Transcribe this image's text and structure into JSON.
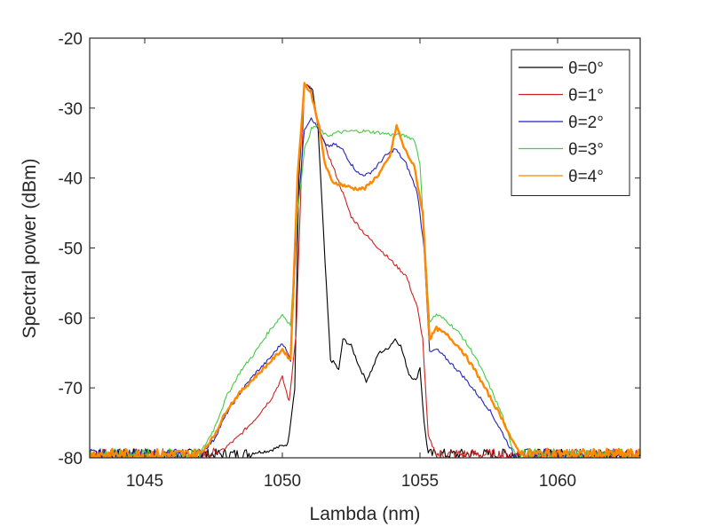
{
  "chart_data": {
    "type": "line",
    "title": "",
    "xlabel": "Lambda (nm)",
    "ylabel": "Spectral power (dBm)",
    "xlim": [
      1043,
      1063
    ],
    "ylim": [
      -80,
      -20
    ],
    "xticks": [
      1045,
      1050,
      1055,
      1060
    ],
    "yticks": [
      -80,
      -70,
      -60,
      -50,
      -40,
      -30,
      -20
    ],
    "grid": false,
    "legend_position": "top-right",
    "noise_floor": -79.5,
    "series": [
      {
        "name": "θ=0°",
        "color": "#000000",
        "points": [
          [
            1043,
            -79.5
          ],
          [
            1048.5,
            -79.5
          ],
          [
            1049.5,
            -79
          ],
          [
            1050.2,
            -78
          ],
          [
            1050.45,
            -70
          ],
          [
            1050.6,
            -40
          ],
          [
            1050.8,
            -26.5
          ],
          [
            1051.1,
            -27.5
          ],
          [
            1051.3,
            -33
          ],
          [
            1051.55,
            -52
          ],
          [
            1051.75,
            -66
          ],
          [
            1051.9,
            -66.5
          ],
          [
            1052.05,
            -67.5
          ],
          [
            1052.2,
            -63
          ],
          [
            1052.5,
            -64
          ],
          [
            1052.8,
            -67
          ],
          [
            1053.05,
            -69
          ],
          [
            1053.3,
            -67
          ],
          [
            1053.5,
            -65
          ],
          [
            1053.8,
            -64.5
          ],
          [
            1054.1,
            -63
          ],
          [
            1054.3,
            -64
          ],
          [
            1054.6,
            -68
          ],
          [
            1054.85,
            -69
          ],
          [
            1055.0,
            -67
          ],
          [
            1055.15,
            -75
          ],
          [
            1055.3,
            -79.5
          ],
          [
            1063,
            -79.5
          ]
        ]
      },
      {
        "name": "θ=1°",
        "color": "#cc2222",
        "points": [
          [
            1043,
            -79.5
          ],
          [
            1047.3,
            -79.5
          ],
          [
            1047.8,
            -79
          ],
          [
            1048.4,
            -77
          ],
          [
            1049.0,
            -74.5
          ],
          [
            1049.6,
            -71.5
          ],
          [
            1050.0,
            -68.5
          ],
          [
            1050.25,
            -72
          ],
          [
            1050.5,
            -62
          ],
          [
            1050.8,
            -26.5
          ],
          [
            1051.0,
            -27
          ],
          [
            1051.3,
            -32
          ],
          [
            1051.6,
            -36
          ],
          [
            1052.0,
            -40
          ],
          [
            1052.5,
            -45.5
          ],
          [
            1053.0,
            -48
          ],
          [
            1053.5,
            -50
          ],
          [
            1054.0,
            -52
          ],
          [
            1054.5,
            -54
          ],
          [
            1054.9,
            -58.5
          ],
          [
            1055.1,
            -63
          ],
          [
            1055.3,
            -77
          ],
          [
            1055.6,
            -79.5
          ],
          [
            1063,
            -79.5
          ]
        ]
      },
      {
        "name": "θ=2°",
        "color": "#2222bb",
        "points": [
          [
            1043,
            -79.5
          ],
          [
            1047.0,
            -79.5
          ],
          [
            1047.5,
            -77.5
          ],
          [
            1048.0,
            -73.5
          ],
          [
            1048.5,
            -70.5
          ],
          [
            1049.0,
            -68
          ],
          [
            1049.5,
            -66
          ],
          [
            1050.0,
            -63.5
          ],
          [
            1050.3,
            -66
          ],
          [
            1050.55,
            -45
          ],
          [
            1050.8,
            -33
          ],
          [
            1051.05,
            -31.3
          ],
          [
            1051.3,
            -33
          ],
          [
            1051.6,
            -35.5
          ],
          [
            1051.9,
            -35.2
          ],
          [
            1052.2,
            -36
          ],
          [
            1052.5,
            -38
          ],
          [
            1052.8,
            -39.5
          ],
          [
            1053.1,
            -39.5
          ],
          [
            1053.4,
            -38.5
          ],
          [
            1053.7,
            -37
          ],
          [
            1054.1,
            -35.8
          ],
          [
            1054.5,
            -38
          ],
          [
            1054.9,
            -42
          ],
          [
            1055.15,
            -50
          ],
          [
            1055.35,
            -65
          ],
          [
            1055.6,
            -64.5
          ],
          [
            1056.0,
            -66
          ],
          [
            1056.5,
            -68
          ],
          [
            1057.0,
            -70.5
          ],
          [
            1057.5,
            -73
          ],
          [
            1058.0,
            -76.5
          ],
          [
            1058.4,
            -79.5
          ],
          [
            1063,
            -79.5
          ]
        ]
      },
      {
        "name": "θ=3°",
        "color": "#44cc44",
        "points": [
          [
            1043,
            -79.5
          ],
          [
            1047.0,
            -79.5
          ],
          [
            1047.5,
            -76
          ],
          [
            1048.0,
            -71
          ],
          [
            1048.5,
            -67.5
          ],
          [
            1049.0,
            -65
          ],
          [
            1049.5,
            -62
          ],
          [
            1050.0,
            -59.5
          ],
          [
            1050.3,
            -61
          ],
          [
            1050.55,
            -45
          ],
          [
            1050.8,
            -36
          ],
          [
            1051.05,
            -33
          ],
          [
            1051.25,
            -32.5
          ],
          [
            1051.6,
            -34
          ],
          [
            1052.0,
            -33.5
          ],
          [
            1052.5,
            -33.3
          ],
          [
            1053.0,
            -33.3
          ],
          [
            1053.5,
            -33.5
          ],
          [
            1054.0,
            -33.8
          ],
          [
            1054.5,
            -34
          ],
          [
            1054.8,
            -34.5
          ],
          [
            1055.0,
            -38
          ],
          [
            1055.15,
            -48
          ],
          [
            1055.35,
            -60.5
          ],
          [
            1055.6,
            -59.5
          ],
          [
            1056.0,
            -60.5
          ],
          [
            1056.5,
            -62.5
          ],
          [
            1057.0,
            -65.5
          ],
          [
            1057.5,
            -69.5
          ],
          [
            1058.0,
            -74
          ],
          [
            1058.3,
            -78
          ],
          [
            1058.5,
            -79.5
          ],
          [
            1063,
            -79.5
          ]
        ]
      },
      {
        "name": "θ=4°",
        "color": "#ff8800",
        "points": [
          [
            1043,
            -79.5
          ],
          [
            1047.0,
            -79.5
          ],
          [
            1047.5,
            -77
          ],
          [
            1048.0,
            -73
          ],
          [
            1048.5,
            -70.5
          ],
          [
            1049.0,
            -68.5
          ],
          [
            1049.5,
            -66.5
          ],
          [
            1050.0,
            -64.5
          ],
          [
            1050.3,
            -66
          ],
          [
            1050.55,
            -40
          ],
          [
            1050.8,
            -26.5
          ],
          [
            1051.05,
            -28
          ],
          [
            1051.3,
            -32
          ],
          [
            1051.55,
            -38
          ],
          [
            1051.8,
            -40.5
          ],
          [
            1052.2,
            -41
          ],
          [
            1052.6,
            -41.5
          ],
          [
            1053.0,
            -41.5
          ],
          [
            1053.5,
            -39.5
          ],
          [
            1053.9,
            -37
          ],
          [
            1054.15,
            -32.5
          ],
          [
            1054.4,
            -35.5
          ],
          [
            1054.8,
            -38.5
          ],
          [
            1055.1,
            -45
          ],
          [
            1055.35,
            -63
          ],
          [
            1055.6,
            -61.5
          ],
          [
            1056.0,
            -62.5
          ],
          [
            1056.5,
            -64.5
          ],
          [
            1057.0,
            -67.5
          ],
          [
            1057.5,
            -71
          ],
          [
            1058.0,
            -74.5
          ],
          [
            1058.4,
            -78
          ],
          [
            1058.7,
            -79.5
          ],
          [
            1063,
            -79.5
          ]
        ]
      }
    ]
  }
}
